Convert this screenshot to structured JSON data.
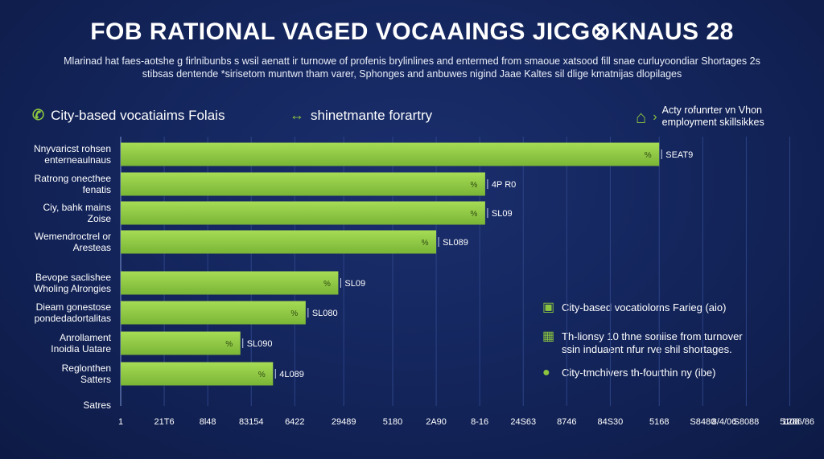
{
  "chart_data": {
    "type": "bar",
    "orientation": "horizontal",
    "title": "FOB RATIONAL VAGED VOCAAINGS JICG⊗KNAUS 28",
    "subtitle": [
      "Mlarinad hat faes-aotshe g firlnibunbs s wsil aenatt ir turnowe of profenis brylinlines and entermed from smaoue xatsood fill snae curluyoondiar Shortages 2s",
      "stibsas dentende *sirisetom muntwn tham varer, Sphonges and anbuwes nigind Jaae Kaltes sil dlige kmatnijas dlopilages"
    ],
    "categories": [
      [
        "Nnyvaricst rohsen",
        "enterneaulnaus"
      ],
      [
        "Ratrong onecthee",
        "fenatis"
      ],
      [
        "Ciy, bahk mains",
        "Zoise"
      ],
      [
        "Wemendroctrel or",
        "Aresteas"
      ],
      [
        "Bevope saclishee",
        "Wholing Alrongies"
      ],
      [
        "Dieam gonestose",
        "pondedadortalitas"
      ],
      [
        "Anrollament",
        "Inoidia Uatare"
      ],
      [
        "Reglonthen",
        "Satters"
      ]
    ],
    "values": [
      9.9,
      6.7,
      6.7,
      5.8,
      4.0,
      3.4,
      2.2,
      2.8
    ],
    "data_labels": [
      "SEAT9",
      "4P R0",
      "SL09",
      "SL089",
      "SL09",
      "SL080",
      "SL090",
      "4L089"
    ],
    "value_prefix": "%",
    "xlim": [
      0,
      12.5
    ],
    "x_ticks": [
      {
        "v": 0,
        "label": "1"
      },
      {
        "v": 0.8,
        "label": "21T6"
      },
      {
        "v": 1.6,
        "label": "8l48"
      },
      {
        "v": 2.4,
        "label": "83154"
      },
      {
        "v": 3.2,
        "label": "6422"
      },
      {
        "v": 4.1,
        "label": "29489"
      },
      {
        "v": 5.0,
        "label": "5180"
      },
      {
        "v": 5.8,
        "label": "2A90"
      },
      {
        "v": 6.6,
        "label": "8-16"
      },
      {
        "v": 7.4,
        "label": "24S63"
      },
      {
        "v": 8.2,
        "label": "8746"
      },
      {
        "v": 9.0,
        "label": "84S30"
      },
      {
        "v": 9.9,
        "label": "5168"
      },
      {
        "v": 10.7,
        "label": "S8480"
      },
      {
        "v": 11.5,
        "label": "S8088"
      },
      {
        "v": 12.3,
        "label": "5108"
      }
    ],
    "extra_tick_labels": [
      "8/4/06",
      "1286/86"
    ],
    "x_axis_label": "Satres",
    "grid": true,
    "bar_color": "#8cc63f",
    "bar_highlight": "#a6dc55",
    "legend_top": [
      {
        "icon": "phone-icon",
        "label": "City-based vocatiaims Folais"
      },
      {
        "icon": "arrows-icon",
        "label": "shinetmante forartry"
      },
      {
        "icon": "house-icon",
        "label": "Acty rofunrter vn Vhon",
        "label2": "employment skillsikkes"
      }
    ],
    "legend_side": [
      {
        "icon": "lock-icon",
        "label": "City-based vocatioloms Farieg (aio)"
      },
      {
        "icon": "building-icon",
        "label": "Th-lionsy 10 thne soniise from turnover",
        "label2": "ssin induaent nfur rve shil shortages."
      },
      {
        "icon": "leaf-icon",
        "label": "City-tmchivers th-fourthin ny (ibe)"
      }
    ]
  },
  "colors": {
    "background": "#13245a",
    "accent": "#8cc63f",
    "grid": "#2c4386"
  }
}
